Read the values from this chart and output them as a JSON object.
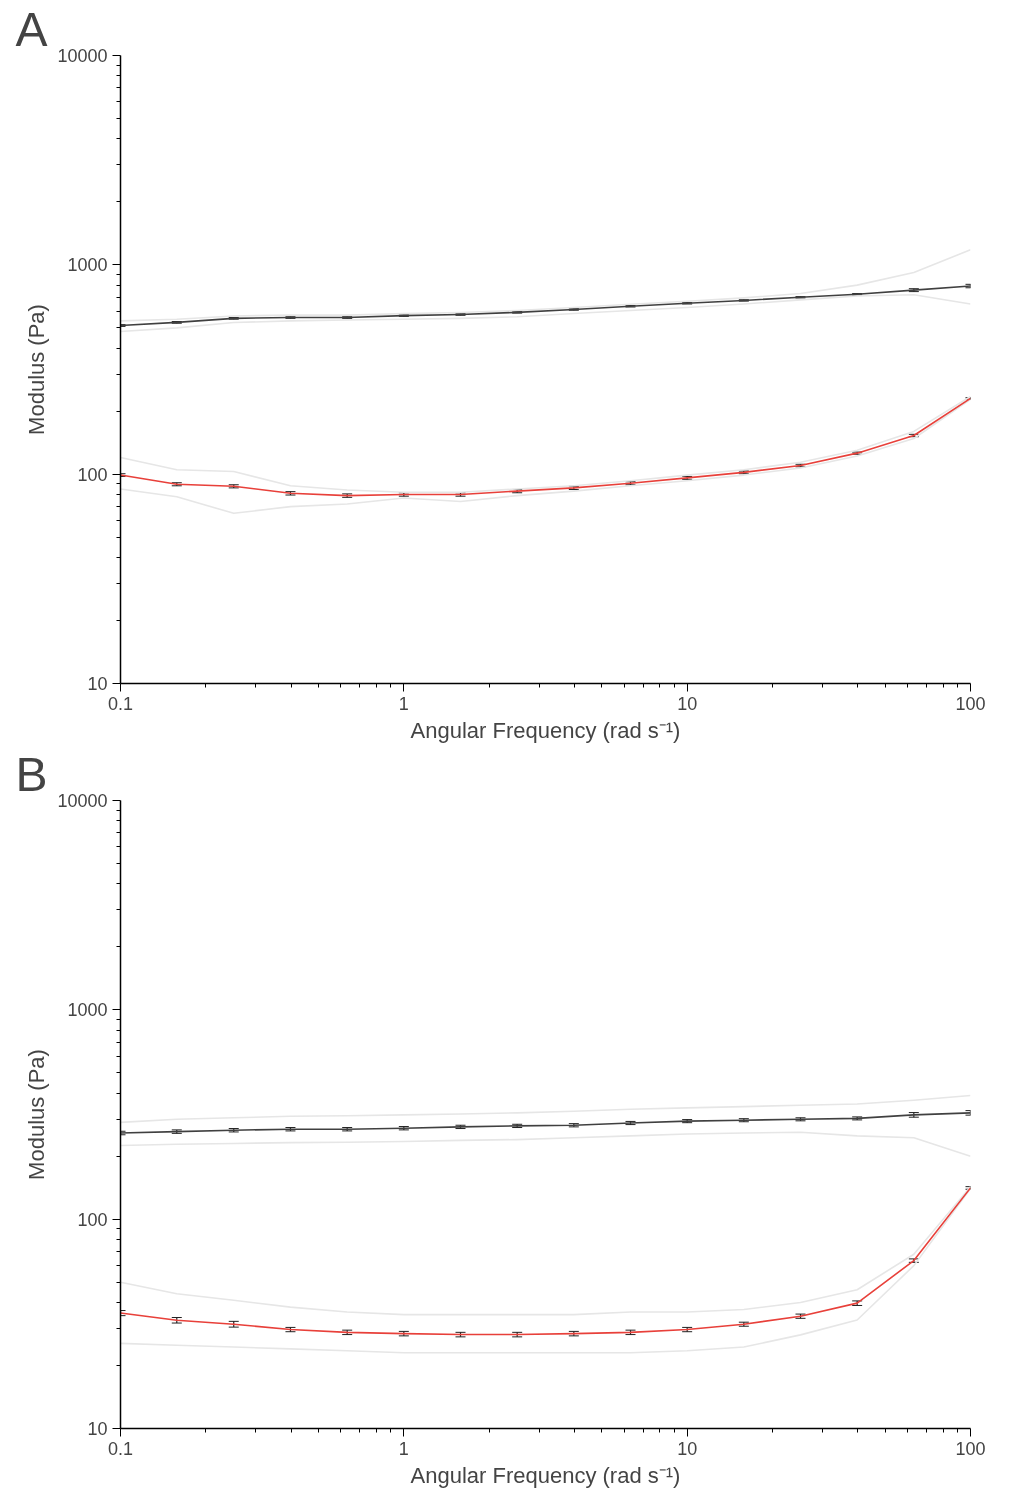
{
  "chart_data": [
    {
      "type": "line",
      "title": "A",
      "xlabel": "Angular Frequency (rad s⁻¹)",
      "ylabel": "Modulus (Pa)",
      "log": "xy",
      "grid": false,
      "marker": "none",
      "line_style": "solid",
      "xlim": [
        0.1,
        100
      ],
      "ylim": [
        10,
        10000
      ],
      "xticks": [
        0.1,
        1,
        10,
        100
      ],
      "yticks": [
        10,
        100,
        1000,
        10000
      ],
      "x": [
        0.1,
        0.158,
        0.251,
        0.398,
        0.631,
        1,
        1.585,
        2.512,
        3.981,
        6.31,
        10,
        15.85,
        25.12,
        39.81,
        63.1,
        100
      ],
      "series": [
        {
          "color": "#e6e6e6",
          "values": [
            540,
            550,
            570,
            575,
            575,
            585,
            592,
            605,
            625,
            648,
            670,
            695,
            730,
            800,
            920,
            1180
          ]
        },
        {
          "color": "#e6e6e6",
          "values": [
            480,
            500,
            530,
            540,
            545,
            550,
            555,
            565,
            585,
            605,
            625,
            650,
            680,
            710,
            720,
            650
          ]
        },
        {
          "color": "#e6e6e6",
          "values": [
            120,
            105,
            103,
            88,
            84,
            82,
            82,
            85,
            88,
            93,
            99,
            105,
            114,
            130,
            160,
            235
          ]
        },
        {
          "color": "#e6e6e6",
          "values": [
            85,
            78,
            65,
            70,
            72,
            77,
            74,
            79,
            83,
            88,
            93,
            99,
            107,
            122,
            148,
            228
          ]
        },
        {
          "color": "#404040",
          "values": [
            513,
            531,
            555,
            560,
            560,
            572,
            579,
            593,
            612,
            634,
            655,
            676,
            700,
            724,
            757,
            792
          ],
          "errors": [
            5,
            5,
            5,
            5,
            5,
            5,
            5,
            5,
            5,
            5,
            5,
            5,
            5,
            5,
            12,
            15
          ]
        },
        {
          "color": "#e8403a",
          "values": [
            99,
            89.5,
            87.5,
            81,
            79,
            80,
            80,
            83,
            86,
            90.5,
            96,
            102,
            110,
            126,
            153,
            230
          ],
          "errors": [
            1.5,
            1.5,
            1.5,
            1.5,
            1.5,
            1.5,
            1.5,
            1.5,
            1.5,
            1.5,
            1.5,
            1.5,
            1.5,
            1.5,
            2,
            2
          ]
        }
      ]
    },
    {
      "type": "line",
      "title": "B",
      "xlabel": "Angular Frequency (rad s⁻¹)",
      "ylabel": "Modulus (Pa)",
      "log": "xy",
      "grid": false,
      "marker": "none",
      "line_style": "solid",
      "xlim": [
        0.1,
        100
      ],
      "ylim": [
        10,
        10000
      ],
      "xticks": [
        0.1,
        1,
        10,
        100
      ],
      "yticks": [
        10,
        100,
        1000,
        10000
      ],
      "x": [
        0.1,
        0.158,
        0.251,
        0.398,
        0.631,
        1,
        1.585,
        2.512,
        3.981,
        6.31,
        10,
        15.85,
        25.12,
        39.81,
        63.1,
        100
      ],
      "series": [
        {
          "color": "#e6e6e6",
          "values": [
            290,
            300,
            305,
            310,
            312,
            315,
            318,
            322,
            328,
            335,
            340,
            345,
            350,
            355,
            370,
            390
          ]
        },
        {
          "color": "#e6e6e6",
          "values": [
            225,
            228,
            230,
            232,
            233,
            235,
            238,
            240,
            245,
            250,
            255,
            258,
            260,
            250,
            245,
            200
          ]
        },
        {
          "color": "#e6e6e6",
          "values": [
            50,
            44,
            41,
            38,
            36,
            35,
            35,
            35,
            35,
            36,
            36,
            37,
            40,
            46,
            68,
            143
          ]
        },
        {
          "color": "#e6e6e6",
          "values": [
            25.5,
            25,
            24.5,
            24,
            23.5,
            23,
            23,
            23,
            23,
            23,
            23.5,
            24.5,
            28,
            33,
            60,
            140
          ]
        },
        {
          "color": "#404040",
          "values": [
            258,
            262,
            266,
            269,
            269,
            272,
            276,
            279,
            281,
            288,
            294,
            297,
            300,
            303,
            315,
            322
          ],
          "errors": [
            5,
            5,
            5,
            5,
            5,
            5,
            5,
            5,
            5,
            5,
            5,
            5,
            5,
            5,
            8,
            8
          ]
        },
        {
          "color": "#e8403a",
          "values": [
            35.6,
            32.9,
            31.5,
            29.7,
            28.8,
            28.4,
            28.1,
            28.1,
            28.4,
            28.8,
            29.7,
            31.5,
            34.4,
            39.7,
            63.4,
            141
          ],
          "errors": [
            1,
            1,
            1,
            0.7,
            0.7,
            0.7,
            0.7,
            0.7,
            0.7,
            0.7,
            0.7,
            0.7,
            0.8,
            1,
            1.2,
            2
          ]
        }
      ]
    }
  ]
}
